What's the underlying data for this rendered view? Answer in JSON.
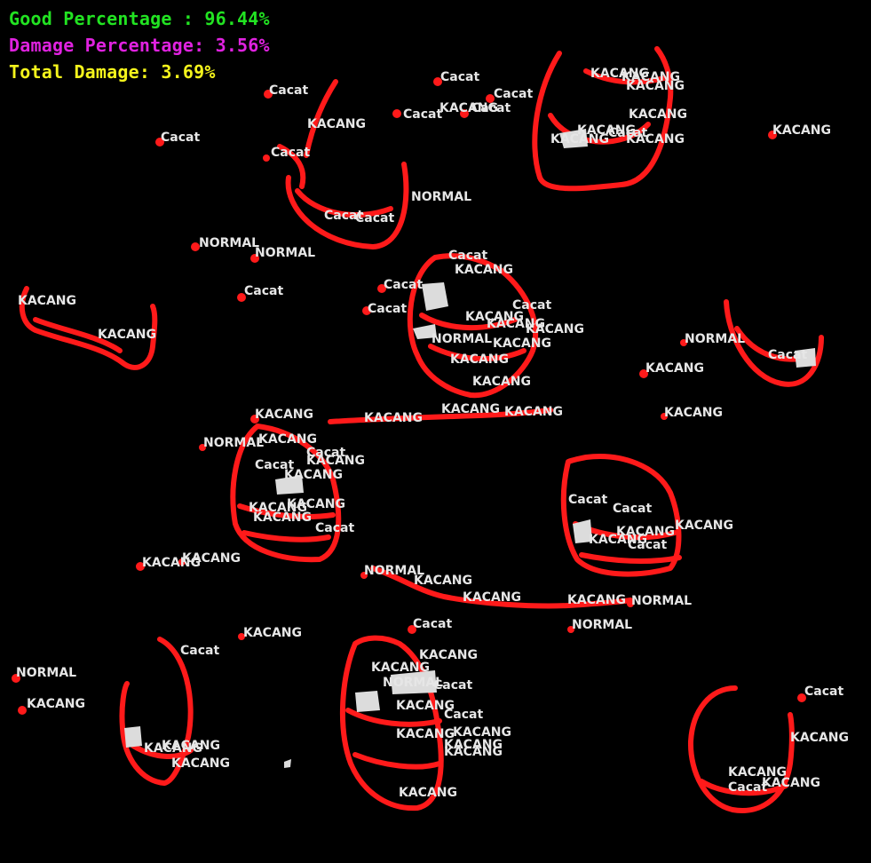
{
  "stats": {
    "good": "Good Percentage : 96.44%",
    "damage": "Damage Percentage: 3.56%",
    "total": "Total Damage: 3.69%"
  },
  "colors": {
    "good": "#22e322",
    "damage": "#e022e0",
    "total": "#f4f41c",
    "contour": "#ff1a1a",
    "label": "#e6e6e6"
  },
  "labels": [
    "Cacat",
    "Cacat",
    "Cacat",
    "Cacat",
    "Cacat",
    "KACANG",
    "Cacat",
    "KACANG",
    "KACANG",
    "KACANG",
    "KACANG",
    "KACANG",
    "KACANG",
    "Cacat",
    "KACANG",
    "KACANG",
    "Cacat",
    "NORMAL",
    "Cacat",
    "Cacat",
    "NORMAL",
    "NORMAL",
    "Cacat",
    "KACANG",
    "KACANG",
    "Cacat",
    "Cacat",
    "Cacat",
    "KACANG",
    "NORMAL",
    "KACANG",
    "KACANG",
    "KACANG",
    "KACANG",
    "NORMAL",
    "KACANG",
    "Cacat",
    "KACANG",
    "KACANG",
    "KACANG",
    "KACANG",
    "KACANG",
    "NORMAL",
    "KACANG",
    "KACANG",
    "KACANG",
    "NORMAL",
    "KACANG",
    "Cacat",
    "Cacat",
    "KACANG",
    "KACANG",
    "KACANG",
    "KACANG",
    "Cacat",
    "Cacat",
    "Cacat",
    "KACANG",
    "KACANG",
    "KACANG",
    "Cacat",
    "KACANG",
    "KACANG",
    "NORMAL",
    "KACANG",
    "KACANG",
    "KACANG",
    "NORMAL",
    "NORMAL",
    "Cacat",
    "KACANG",
    "Cacat",
    "KACANG",
    "Cacat",
    "KACANG",
    "KACANG",
    "Cacat",
    "KACANG",
    "KACANG",
    "KACANG",
    "KACANG",
    "NORMAL",
    "KACANG",
    "Cacat",
    "KACANG",
    "KACANG",
    "Cacat",
    "KACANG",
    "KACANG",
    "KACANG",
    "KACANG",
    "Cacat",
    "KACANG",
    "KACANG"
  ]
}
